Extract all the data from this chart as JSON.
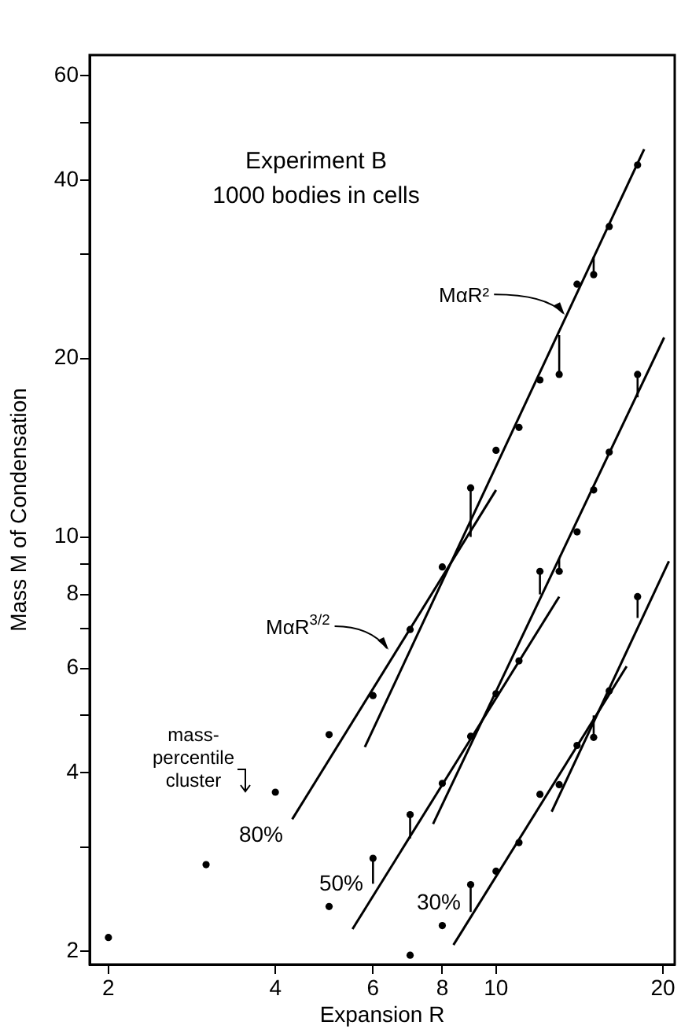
{
  "chart_data": {
    "type": "scatter",
    "xlabel": "Expansion R",
    "ylabel": "Mass M of Condensation",
    "log": "xy",
    "grid": false,
    "marker": "circle",
    "xlim": [
      1.85,
      21
    ],
    "ylim": [
      1.9,
      65
    ],
    "xticks": [
      2,
      4,
      6,
      8,
      10,
      20
    ],
    "yticks": [
      2,
      {
        "value": 3,
        "label": null
      },
      4,
      {
        "value": 5,
        "label": null
      },
      6,
      {
        "value": 7,
        "label": null
      },
      8,
      {
        "value": 9,
        "label": null
      },
      10,
      20,
      {
        "value": 30,
        "label": null
      },
      40,
      {
        "value": 50,
        "label": null
      },
      60
    ],
    "series": [
      {
        "name": "80%",
        "color": "#000000",
        "x": [
          2,
          3,
          4,
          5,
          6,
          7,
          8,
          9,
          10,
          11,
          12,
          13,
          14,
          15,
          16,
          18
        ],
        "values": [
          2.11,
          2.8,
          3.71,
          4.64,
          5.4,
          6.98,
          8.9,
          12.1,
          14.0,
          15.3,
          18.4,
          18.8,
          26.7,
          27.7,
          33.4,
          42.4
        ],
        "errors": [
          null,
          null,
          null,
          null,
          null,
          null,
          null,
          [
            10.0,
            12.1
          ],
          null,
          null,
          null,
          [
            18.8,
            21.9
          ],
          null,
          [
            27.7,
            29.7
          ],
          null,
          null
        ]
      },
      {
        "name": "50%",
        "color": "#000000",
        "x": [
          5,
          6,
          7,
          8,
          9,
          10,
          11,
          12,
          13,
          14,
          15,
          16,
          18
        ],
        "values": [
          2.38,
          2.87,
          3.4,
          3.84,
          4.61,
          5.44,
          6.18,
          8.75,
          8.75,
          10.2,
          12.0,
          13.9,
          18.8
        ],
        "errors": [
          null,
          [
            2.6,
            2.87
          ],
          [
            3.1,
            3.4
          ],
          null,
          null,
          null,
          null,
          [
            8.0,
            8.75
          ],
          [
            8.75,
            9.2
          ],
          null,
          null,
          null,
          [
            17.2,
            18.8
          ]
        ]
      },
      {
        "name": "30%",
        "color": "#000000",
        "x": [
          7,
          8,
          9,
          10,
          11,
          12,
          13,
          14,
          15,
          16,
          18
        ],
        "values": [
          1.97,
          2.21,
          2.59,
          2.73,
          3.05,
          3.68,
          3.82,
          4.45,
          4.59,
          5.5,
          7.93
        ],
        "errors": [
          null,
          null,
          [
            2.33,
            2.59
          ],
          null,
          null,
          null,
          null,
          null,
          [
            4.59,
            5.0
          ],
          null,
          [
            7.3,
            7.93
          ]
        ]
      },
      {
        "type": "line",
        "marker": "none",
        "color": "#000000",
        "x": [
          5.8,
          18.5
        ],
        "values": [
          4.42,
          45.1
        ]
      },
      {
        "type": "line",
        "marker": "none",
        "color": "#000000",
        "x": [
          4.29,
          10.0
        ],
        "values": [
          3.34,
          12.0
        ]
      },
      {
        "type": "line",
        "marker": "none",
        "color": "#000000",
        "x": [
          7.7,
          20.1
        ],
        "values": [
          3.28,
          21.7
        ]
      },
      {
        "type": "line",
        "marker": "none",
        "color": "#000000",
        "x": [
          5.51,
          13.0
        ],
        "values": [
          2.18,
          7.93
        ]
      },
      {
        "type": "line",
        "marker": "none",
        "color": "#000000",
        "x": [
          12.6,
          20.5
        ],
        "values": [
          3.44,
          9.1
        ]
      },
      {
        "type": "line",
        "marker": "none",
        "color": "#000000",
        "x": [
          8.38,
          17.2
        ],
        "values": [
          2.05,
          6.05
        ]
      }
    ],
    "annotations": [
      "Experiment B",
      "1000 bodies in cells",
      "mass-percentile cluster",
      {
        "text": "MαR²",
        "x": 13.3,
        "y": 23.7
      },
      {
        "text": "MαR$^{3/2}$",
        "x": 6.4,
        "y": 6.45
      }
    ]
  }
}
